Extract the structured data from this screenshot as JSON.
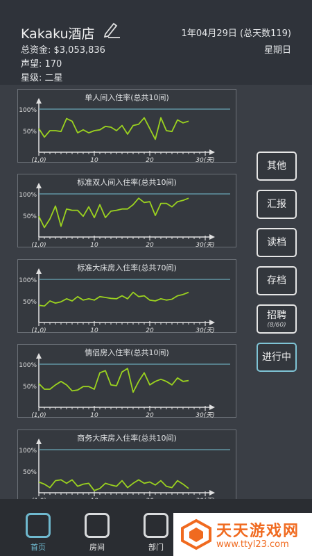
{
  "header": {
    "title": "Kakaku酒店",
    "money": "总资金: $3,053,836",
    "reputation": "声望: 170",
    "star": "星级: 二星",
    "date": "1年04月29日 (总天数119)",
    "weekday": "星期日"
  },
  "axis": {
    "y_high": "100%",
    "y_mid": "50%",
    "x_start": "(1,0)",
    "x_mid1": "10",
    "x_mid2": "20",
    "x_end": "30(天)"
  },
  "colors": {
    "line": "#9bd21f",
    "ref_line": "#6aa7b8"
  },
  "chart_data": [
    {
      "type": "line",
      "title": "单人间入住率(总共10间)",
      "ylim": [
        0,
        100
      ],
      "x": [
        1,
        2,
        3,
        4,
        5,
        6,
        7,
        8,
        9,
        10,
        11,
        12,
        13,
        14,
        15,
        16,
        17,
        18,
        19,
        20,
        21,
        22,
        23,
        24,
        25,
        26,
        27,
        28
      ],
      "values": [
        55,
        35,
        50,
        50,
        48,
        78,
        72,
        45,
        52,
        45,
        50,
        52,
        60,
        58,
        50,
        62,
        42,
        62,
        65,
        80,
        55,
        30,
        80,
        50,
        48,
        75,
        68,
        72
      ]
    },
    {
      "type": "line",
      "title": "标准双人间入住率(总共10间)",
      "ylim": [
        0,
        100
      ],
      "x": [
        1,
        2,
        3,
        4,
        5,
        6,
        7,
        8,
        9,
        10,
        11,
        12,
        13,
        14,
        15,
        16,
        17,
        18,
        19,
        20,
        21,
        22,
        23,
        24,
        25,
        26,
        27,
        28
      ],
      "values": [
        48,
        22,
        42,
        72,
        25,
        65,
        62,
        62,
        48,
        70,
        45,
        75,
        45,
        60,
        62,
        65,
        65,
        75,
        90,
        80,
        82,
        50,
        78,
        78,
        70,
        82,
        85,
        90
      ]
    },
    {
      "type": "line",
      "title": "标准大床房入住率(总共70间)",
      "ylim": [
        0,
        100
      ],
      "x": [
        1,
        2,
        3,
        4,
        5,
        6,
        7,
        8,
        9,
        10,
        11,
        12,
        13,
        14,
        15,
        16,
        17,
        18,
        19,
        20,
        21,
        22,
        23,
        24,
        25,
        26,
        27,
        28
      ],
      "values": [
        40,
        38,
        50,
        45,
        48,
        55,
        50,
        60,
        52,
        55,
        52,
        60,
        58,
        56,
        55,
        62,
        55,
        70,
        60,
        62,
        52,
        50,
        55,
        52,
        54,
        62,
        65,
        70
      ]
    },
    {
      "type": "line",
      "title": "情侣房入住率(总共10间)",
      "ylim": [
        0,
        100
      ],
      "x": [
        1,
        2,
        3,
        4,
        5,
        6,
        7,
        8,
        9,
        10,
        11,
        12,
        13,
        14,
        15,
        16,
        17,
        18,
        19,
        20,
        21,
        22,
        23,
        24,
        25,
        26,
        27,
        28
      ],
      "values": [
        55,
        42,
        42,
        52,
        60,
        52,
        38,
        40,
        48,
        48,
        42,
        80,
        85,
        52,
        50,
        82,
        90,
        35,
        60,
        80,
        52,
        60,
        65,
        60,
        52,
        68,
        60,
        62
      ]
    },
    {
      "type": "line",
      "title": "商务大床房入住率(总共10间)",
      "ylim": [
        0,
        100
      ],
      "x": [
        1,
        2,
        3,
        4,
        5,
        6,
        7,
        8,
        9,
        10,
        11,
        12,
        13,
        14,
        15,
        16,
        17,
        18,
        19,
        20,
        21,
        22,
        23,
        24,
        25,
        26,
        27,
        28
      ],
      "values": [
        25,
        20,
        12,
        28,
        30,
        22,
        30,
        15,
        20,
        22,
        5,
        10,
        22,
        18,
        15,
        28,
        12,
        22,
        30,
        22,
        25,
        18,
        28,
        15,
        12,
        28,
        20,
        10
      ]
    }
  ],
  "buttons": {
    "other": "其他",
    "report": "汇报",
    "load": "读档",
    "save": "存档",
    "hire": "招聘",
    "hire_count": "(8/60)",
    "running": "进行中"
  },
  "tabs": {
    "home": "首页",
    "rooms": "房间",
    "department": "部门"
  },
  "watermark": {
    "name": "天天游戏网",
    "url": "www.ttyl23.com"
  }
}
